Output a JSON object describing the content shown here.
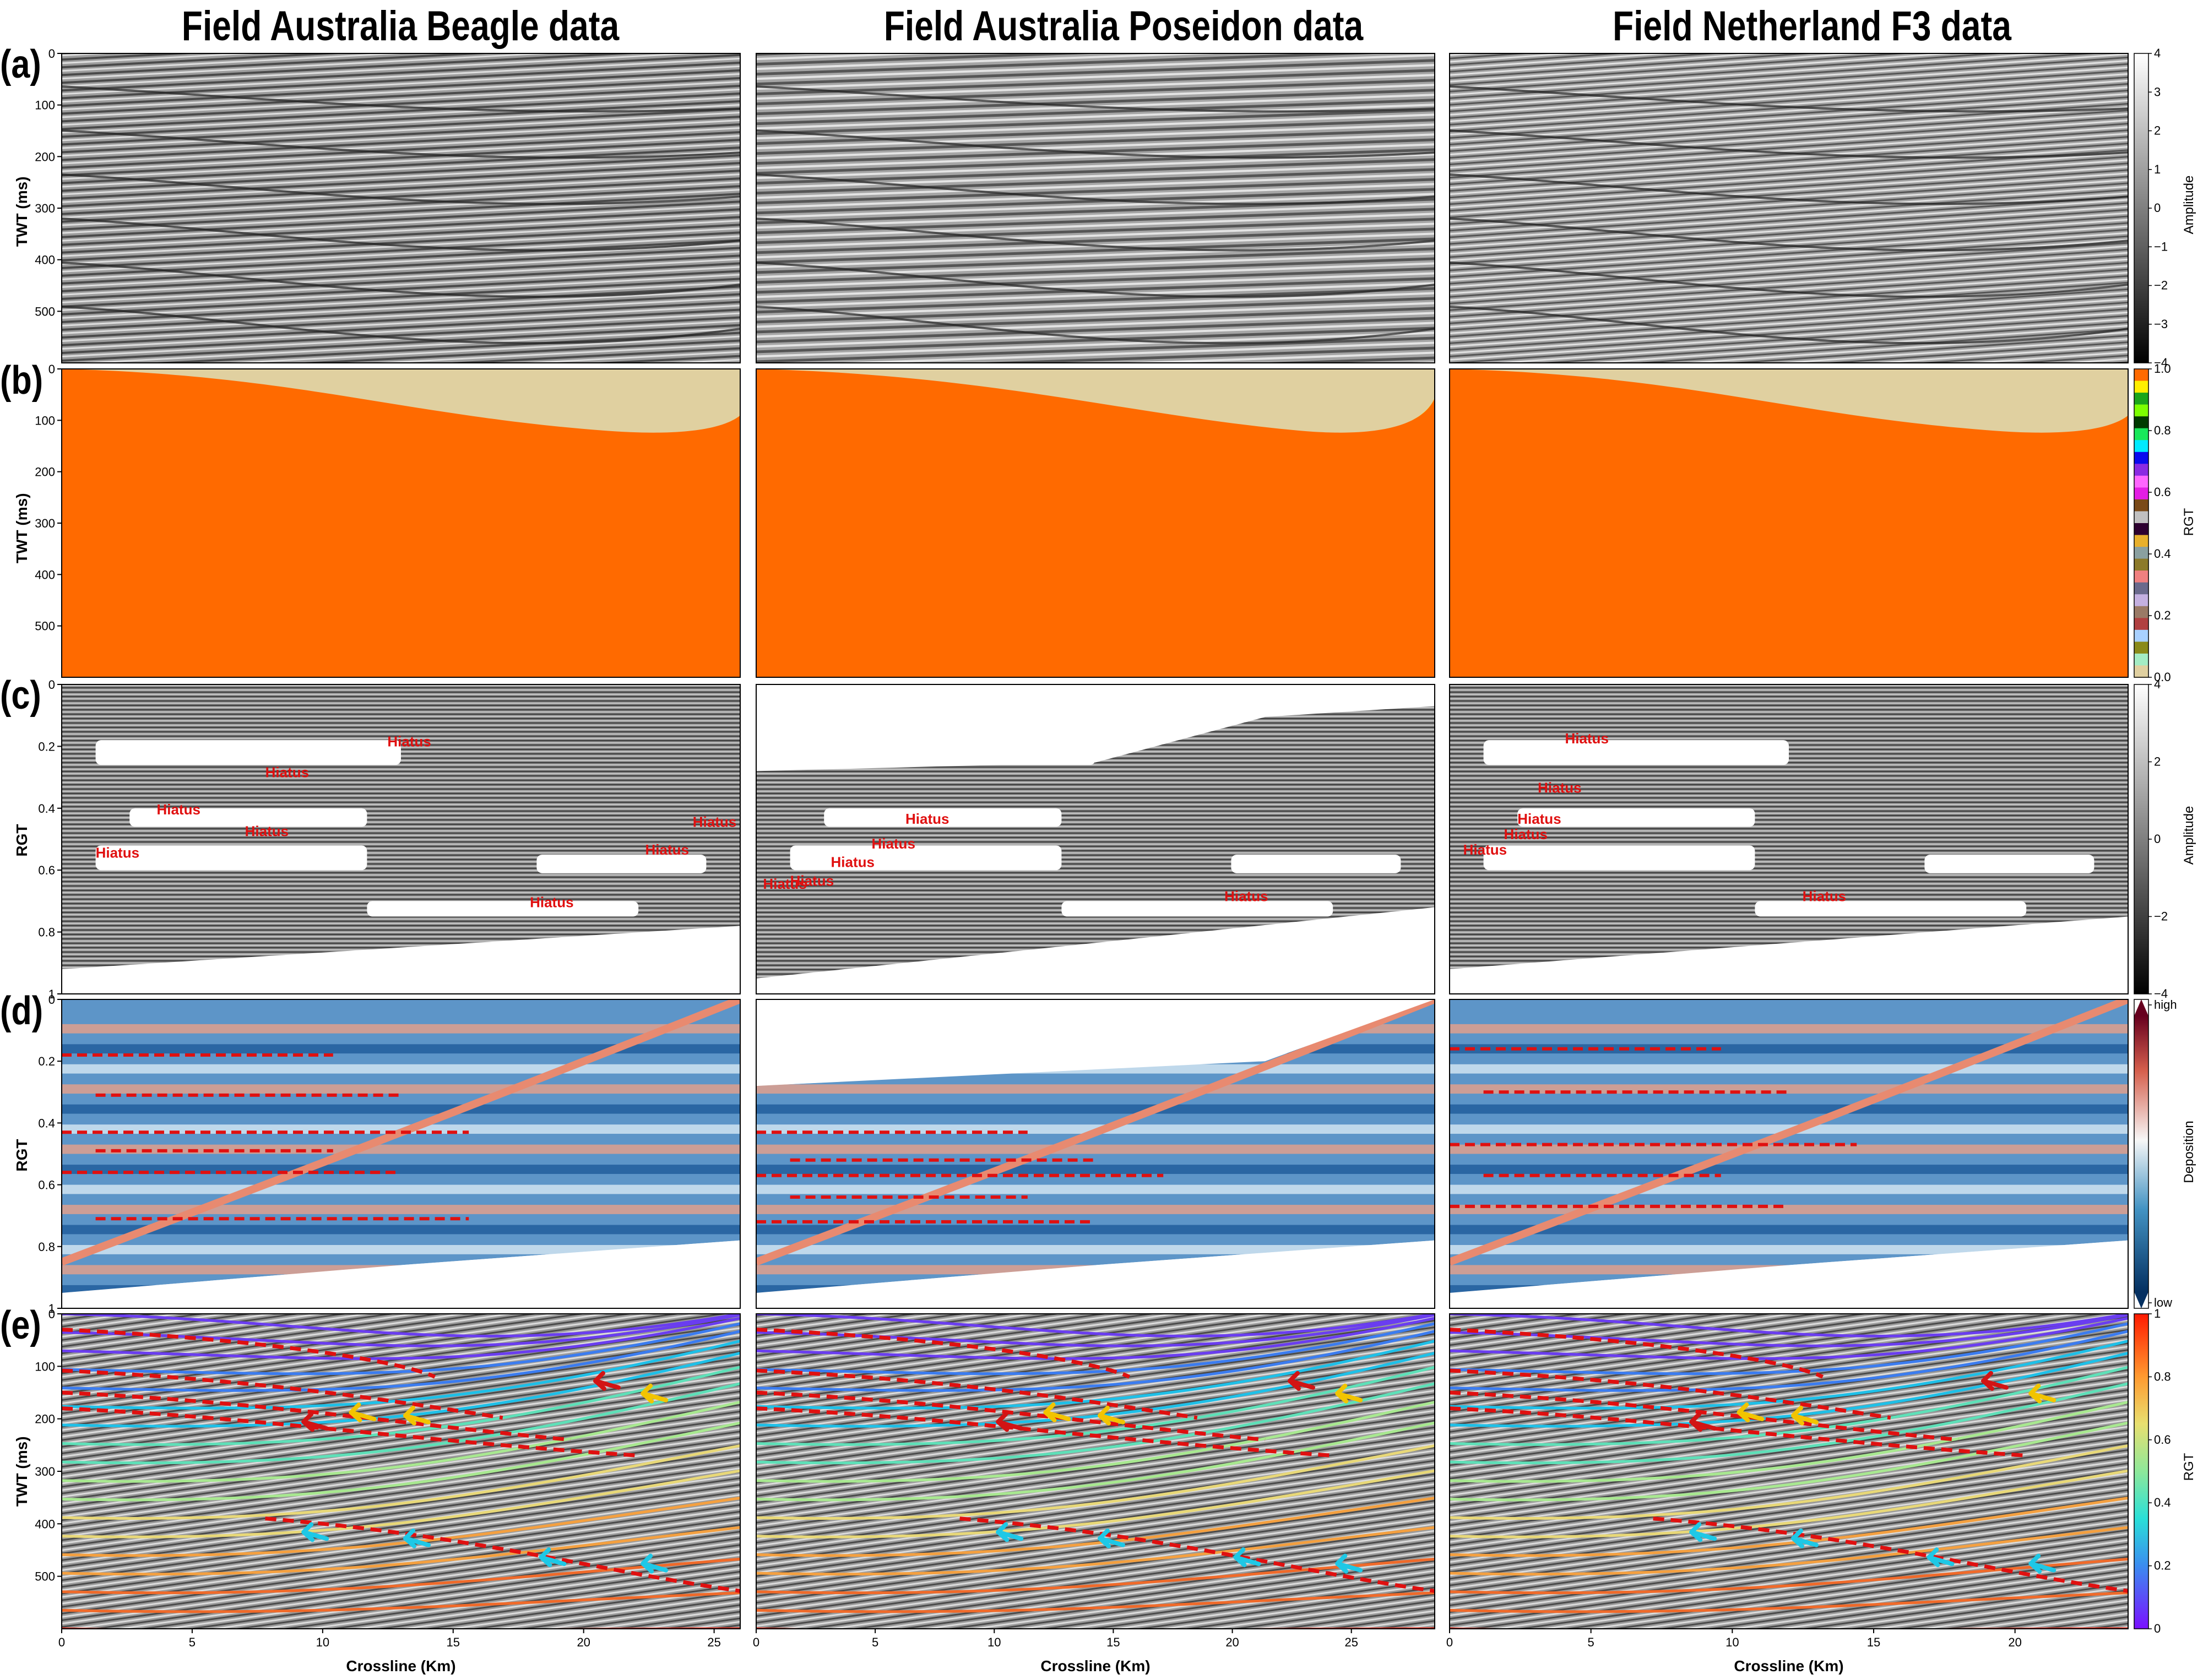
{
  "titles": [
    "Field Australia Beagle data",
    "Field Australia Poseidon data",
    "Field Netherland F3 data"
  ],
  "row_labels": [
    "(a)",
    "(b)",
    "(c)",
    "(d)",
    "(e)"
  ],
  "ylabels": {
    "a": "TWT (ms)",
    "b": "TWT (ms)",
    "c": "RGT",
    "d": "RGT",
    "e": "TWT (ms)"
  },
  "xlabel": "Crossline (Km)",
  "colorbars": {
    "a": {
      "label": "Amplitude",
      "ticks": [
        "4",
        "3",
        "2",
        "1",
        "0",
        "−1",
        "−2",
        "−3",
        "−4"
      ]
    },
    "b": {
      "label": "RGT",
      "ticks": [
        "1.0",
        "0.8",
        "0.6",
        "0.4",
        "0.2",
        "0.0"
      ]
    },
    "c": {
      "label": "Amplitude",
      "ticks": [
        "4",
        "2",
        "0",
        "−2",
        "−4"
      ]
    },
    "d": {
      "label": "Deposition",
      "ticks": [
        "high",
        "low"
      ]
    },
    "e": {
      "label": "RGT",
      "ticks": [
        "1",
        "0.8",
        "0.6",
        "0.4",
        "0.2",
        "0"
      ]
    }
  },
  "annotation_text": "Hiatus",
  "colors": {
    "hiatus": "#e01010",
    "dashed_boundary": "#e01010",
    "arrow_red": "#d21414",
    "arrow_yellow": "#f2c400",
    "arrow_cyan": "#1ec8e6"
  },
  "chart_data": [
    {
      "type": "heatmap",
      "row": "a",
      "column": "Field Australia Beagle data",
      "ylabel": "TWT (ms)",
      "yticks": [
        "0",
        "100",
        "200",
        "300",
        "400",
        "500"
      ],
      "xticks": [],
      "colorbar": "Amplitude",
      "zlim": [
        -4,
        4
      ]
    },
    {
      "type": "heatmap",
      "row": "a",
      "column": "Field Australia Poseidon data",
      "yticks": [],
      "xticks": []
    },
    {
      "type": "heatmap",
      "row": "a",
      "column": "Field Netherland F3 data",
      "yticks": [],
      "xticks": []
    },
    {
      "type": "heatmap",
      "row": "b",
      "column": "Field Australia Beagle data",
      "ylabel": "TWT (ms)",
      "yticks": [
        "0",
        "100",
        "200",
        "300",
        "400",
        "500"
      ],
      "colorbar": "RGT",
      "zlim": [
        0,
        1
      ]
    },
    {
      "type": "heatmap",
      "row": "b",
      "column": "Field Australia Poseidon data"
    },
    {
      "type": "heatmap",
      "row": "b",
      "column": "Field Netherland F3 data"
    },
    {
      "type": "heatmap",
      "row": "c",
      "column": "Field Australia Beagle data",
      "ylabel": "RGT",
      "yticks": [
        "0",
        "0.2",
        "0.4",
        "0.6",
        "0.8",
        "1"
      ],
      "colorbar": "Amplitude",
      "annotations": [
        "Hiatus",
        "Hiatus",
        "Hiatus",
        "Hiatus",
        "Hiatus",
        "Hiatus",
        "Hiatus",
        "Hiatus"
      ]
    },
    {
      "type": "heatmap",
      "row": "c",
      "column": "Field Australia Poseidon data",
      "annotations": [
        "Hiatus",
        "Hiatus",
        "Hiatus",
        "Hiatus",
        "Hiatus",
        "Hiatus"
      ]
    },
    {
      "type": "heatmap",
      "row": "c",
      "column": "Field Netherland F3 data",
      "annotations": [
        "Hiatus",
        "Hiatus",
        "Hiatus",
        "Hiatus",
        "Hiatus",
        "Hiatus"
      ]
    },
    {
      "type": "heatmap",
      "row": "d",
      "column": "Field Australia Beagle data",
      "ylabel": "RGT",
      "yticks": [
        "0",
        "0.2",
        "0.4",
        "0.6",
        "0.8",
        "1"
      ],
      "colorbar": "Deposition",
      "hiatus_boundaries_rgt": [
        0.18,
        0.31,
        0.43,
        0.49,
        0.56,
        0.71
      ]
    },
    {
      "type": "heatmap",
      "row": "d",
      "column": "Field Australia Poseidon data",
      "hiatus_boundaries_rgt": [
        0.43,
        0.52,
        0.57,
        0.64,
        0.72
      ]
    },
    {
      "type": "heatmap",
      "row": "d",
      "column": "Field Netherland F3 data",
      "hiatus_boundaries_rgt": [
        0.16,
        0.3,
        0.47,
        0.57,
        0.67
      ]
    },
    {
      "type": "heatmap",
      "row": "e",
      "column": "Field Australia Beagle data",
      "ylabel": "TWT (ms)",
      "yticks": [
        "0",
        "100",
        "200",
        "300",
        "400",
        "500"
      ],
      "xlabel": "Crossline (Km)",
      "xticks": [
        "0",
        "5",
        "10",
        "15",
        "20",
        "25"
      ],
      "xlim": [
        0,
        26
      ],
      "colorbar": "RGT"
    },
    {
      "type": "heatmap",
      "row": "e",
      "column": "Field Australia Poseidon data",
      "xlabel": "Crossline (Km)",
      "xticks": [
        "0",
        "5",
        "10",
        "15",
        "20",
        "25"
      ],
      "xlim": [
        0,
        28.5
      ]
    },
    {
      "type": "heatmap",
      "row": "e",
      "column": "Field Netherland F3 data",
      "xlabel": "Crossline (Km)",
      "xticks": [
        "0",
        "5",
        "10",
        "15",
        "20"
      ],
      "xlim": [
        0,
        24
      ]
    }
  ]
}
